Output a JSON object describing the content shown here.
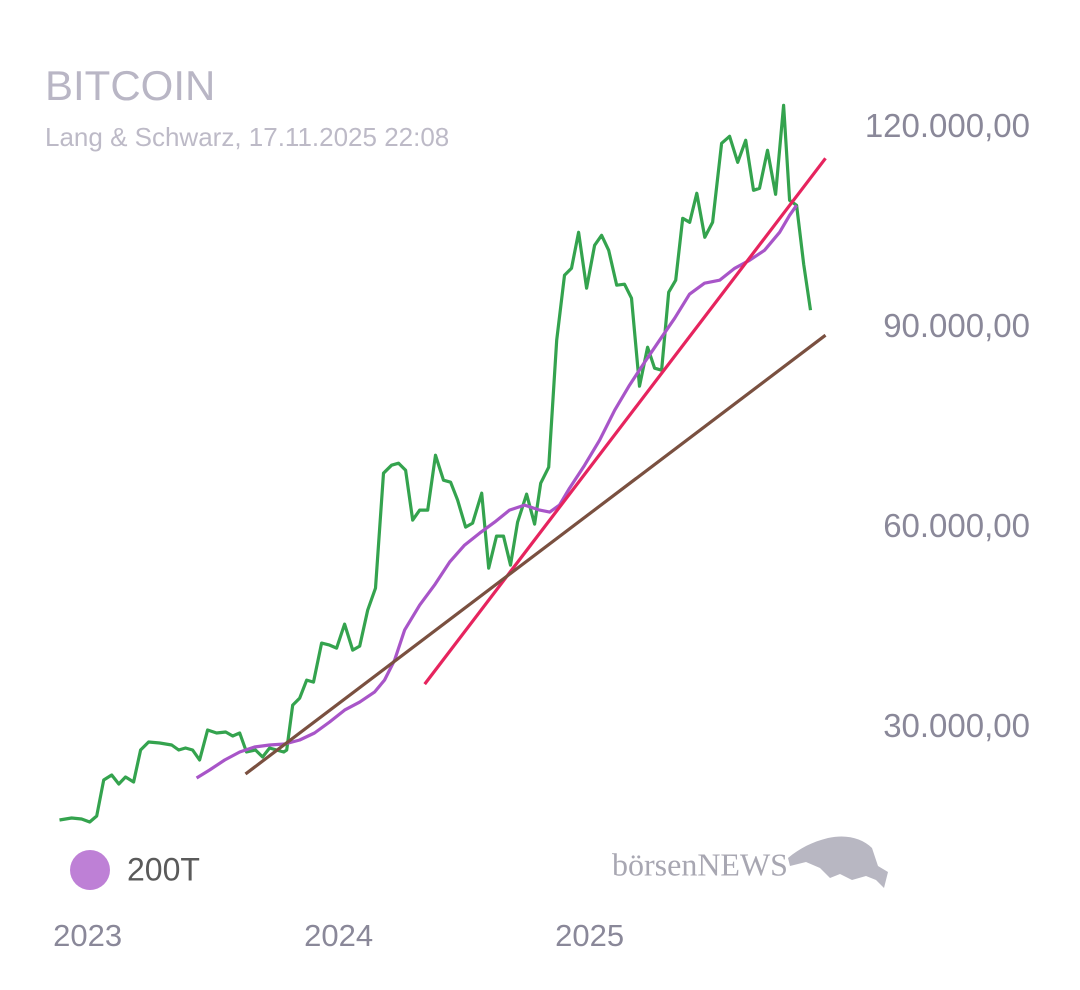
{
  "chart_data": {
    "type": "line",
    "title": "BITCOIN",
    "subtitle": "Lang & Schwarz, 17.11.2025 22:08",
    "logo": "börsenNEWS",
    "xlim": [
      2022.85,
      2025.93
    ],
    "xticks": [
      2023,
      2024,
      2025
    ],
    "ylim": [
      15000,
      125000
    ],
    "yticks": [
      {
        "value": 30000,
        "label": "30.000,00"
      },
      {
        "value": 60000,
        "label": "60.000,00"
      },
      {
        "value": 90000,
        "label": "90.000,00"
      },
      {
        "value": 120000,
        "label": "120.000,00"
      }
    ],
    "grid": false,
    "legend": "bottom-left",
    "series": [
      {
        "color": "#34a34e",
        "x": [
          2022.888,
          2022.936,
          2022.976,
          2023.008,
          2023.036,
          2023.064,
          2023.096,
          2023.124,
          2023.151,
          2023.183,
          2023.211,
          2023.243,
          2023.287,
          2023.335,
          2023.363,
          2023.39,
          2023.418,
          2023.446,
          2023.478,
          2023.514,
          2023.55,
          2023.578,
          2023.606,
          2023.633,
          2023.669,
          2023.697,
          2023.725,
          2023.753,
          2023.781,
          2023.793,
          2023.817,
          2023.845,
          2023.873,
          2023.9,
          2023.932,
          2023.964,
          2023.992,
          2024.024,
          2024.056,
          2024.084,
          2024.116,
          2024.147,
          2024.179,
          2024.211,
          2024.239,
          2024.267,
          2024.295,
          2024.323,
          2024.355,
          2024.386,
          2024.418,
          2024.446,
          2024.474,
          2024.506,
          2024.534,
          2024.57,
          2024.598,
          2024.629,
          2024.657,
          2024.685,
          2024.713,
          2024.749,
          2024.781,
          2024.805,
          2024.837,
          2024.869,
          2024.9,
          2024.928,
          2024.956,
          2024.988,
          2025.02,
          2025.048,
          2025.076,
          2025.108,
          2025.139,
          2025.167,
          2025.199,
          2025.231,
          2025.259,
          2025.287,
          2025.315,
          2025.343,
          2025.371,
          2025.399,
          2025.427,
          2025.459,
          2025.49,
          2025.526,
          2025.558,
          2025.59,
          2025.622,
          2025.653,
          2025.677,
          2025.709,
          2025.741,
          2025.773,
          2025.797,
          2025.825,
          2025.853,
          2025.88
        ],
        "values": [
          16200,
          16500,
          16350,
          15900,
          16800,
          22200,
          22950,
          21600,
          22650,
          21900,
          26700,
          27900,
          27750,
          27450,
          26700,
          27000,
          26700,
          25200,
          29700,
          29250,
          29400,
          28800,
          29250,
          26400,
          26700,
          25650,
          27000,
          26700,
          26400,
          26700,
          33450,
          34500,
          37200,
          36900,
          42750,
          42450,
          42000,
          45600,
          41700,
          42300,
          47700,
          51000,
          68250,
          69450,
          69750,
          68700,
          61200,
          62700,
          62700,
          70950,
          67200,
          66900,
          64200,
          60150,
          60750,
          65250,
          54000,
          58800,
          58800,
          54450,
          60900,
          65100,
          60600,
          66750,
          69150,
          88200,
          97950,
          99000,
          104400,
          96000,
          102450,
          103950,
          101700,
          96450,
          96600,
          94500,
          81300,
          87150,
          84000,
          83700,
          95400,
          97200,
          106500,
          105900,
          110250,
          103650,
          105900,
          117750,
          118800,
          114900,
          118200,
          110700,
          111000,
          116700,
          110100,
          123450,
          109200,
          108450,
          99600,
          92700
        ]
      },
      {
        "name": "200T",
        "color": "#a855c8",
        "x": [
          2023.434,
          2023.486,
          2023.546,
          2023.606,
          2023.665,
          2023.725,
          2023.785,
          2023.845,
          2023.904,
          2023.964,
          2024.024,
          2024.084,
          2024.143,
          2024.183,
          2024.223,
          2024.263,
          2024.323,
          2024.382,
          2024.442,
          2024.502,
          2024.562,
          2024.622,
          2024.681,
          2024.741,
          2024.801,
          2024.841,
          2024.88,
          2024.92,
          2024.98,
          2025.04,
          2025.1,
          2025.159,
          2025.219,
          2025.279,
          2025.339,
          2025.398,
          2025.458,
          2025.518,
          2025.578,
          2025.637,
          2025.697,
          2025.757,
          2025.797,
          2025.825
        ],
        "values": [
          22500,
          23700,
          25200,
          26400,
          27150,
          27450,
          27600,
          28200,
          29250,
          30900,
          32700,
          33900,
          35400,
          37200,
          40200,
          44700,
          48450,
          51450,
          54900,
          57450,
          59250,
          60900,
          62700,
          63450,
          62700,
          62400,
          63450,
          66000,
          69450,
          73200,
          77700,
          81450,
          84900,
          88200,
          91500,
          95100,
          96750,
          97200,
          99000,
          100200,
          101700,
          104400,
          106950,
          108450
        ]
      },
      {
        "color": "#e6245e",
        "x": [
          2024.343,
          2025.94
        ],
        "values": [
          36600,
          115500
        ]
      },
      {
        "color": "#7a5040",
        "x": [
          2023.629,
          2025.94
        ],
        "values": [
          23100,
          88950
        ]
      }
    ]
  }
}
